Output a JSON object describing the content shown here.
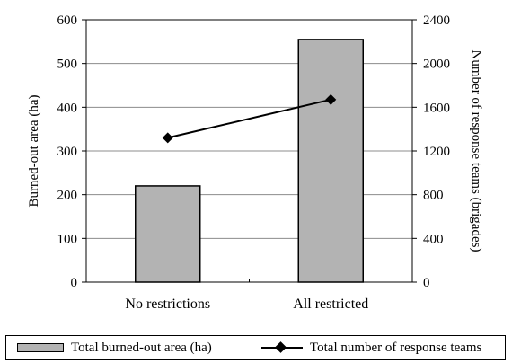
{
  "chart_data": {
    "type": "bar",
    "categories": [
      "No restrictions",
      "All restricted"
    ],
    "series": [
      {
        "name": "Total burned-out area (ha)",
        "type": "bar",
        "axis": "left",
        "values": [
          220,
          555
        ],
        "color": "#b3b3b3"
      },
      {
        "name": "Total number of response teams",
        "type": "line",
        "axis": "right",
        "values": [
          1320,
          1670
        ],
        "color": "#000000",
        "marker": "diamond"
      }
    ],
    "ylabel": "Burned-out area (ha)",
    "y2label": "Number of response teams (brigades)",
    "ylim": [
      0,
      600
    ],
    "y2lim": [
      0,
      2400
    ],
    "yticks": [
      0,
      100,
      200,
      300,
      400,
      500,
      600
    ],
    "y2ticks": [
      0,
      400,
      800,
      1200,
      1600,
      2000,
      2400
    ],
    "grid": true,
    "legend_position": "bottom"
  }
}
